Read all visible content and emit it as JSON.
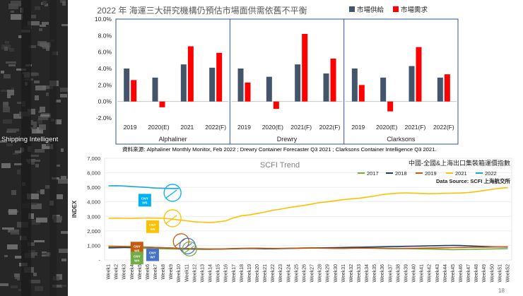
{
  "side_caption": "Shipping Intelligent",
  "source_note": "資料來源: Alphaliner Monthly Monitor, Feb 2022 ; Drewry Container Forecaster Q3 2021 ; Clarksons Container Intelligence Q3 2021.",
  "page_number": "18",
  "chart_data": [
    {
      "type": "bar",
      "title": "2022 年 海運三大研究機構仍預估市場面供需依舊不平衡",
      "legend": [
        "市場供給",
        "市場需求"
      ],
      "colors": {
        "supply": "#44546A",
        "demand": "#FF0000",
        "frame": "#2F5597"
      },
      "ylim": [
        -2.0,
        10.0
      ],
      "yticks": [
        "-2.0%",
        "0.0%",
        "2.0%",
        "4.0%",
        "6.0%",
        "8.0%",
        "10.0%"
      ],
      "ytick_values": [
        -2,
        0,
        2,
        4,
        6,
        8,
        10
      ],
      "panels": [
        {
          "name": "Alphaliner",
          "categories": [
            "2019",
            "2020(E)",
            "2021",
            "2022(F)"
          ],
          "supply": [
            4.0,
            2.9,
            4.5,
            4.1
          ],
          "demand": [
            2.6,
            -0.7,
            6.7,
            5.9
          ]
        },
        {
          "name": "Drewry",
          "categories": [
            "2019",
            "2020(E)",
            "2021(F)",
            "2022(F)"
          ],
          "supply": [
            4.0,
            3.0,
            4.5,
            3.4
          ],
          "demand": [
            2.3,
            -0.9,
            8.2,
            5.2
          ]
        },
        {
          "name": "Clarksons",
          "categories": [
            "2019",
            "2020(E)",
            "2021(F)",
            "2022(F)"
          ],
          "supply": [
            4.0,
            2.9,
            4.3,
            2.9
          ],
          "demand": [
            2.0,
            -1.2,
            6.6,
            3.3
          ]
        }
      ]
    },
    {
      "type": "line",
      "title": "SCFI Trend",
      "subtitle": "中國-全國&上海出口集裝箱運價指數",
      "source_label": "Data Source: SCFI 上海航交所",
      "ylabel": "INDEX",
      "ylim": [
        0,
        7000
      ],
      "yticks": [
        "-",
        "1,000",
        "2,000",
        "3,000",
        "4,000",
        "5,000",
        "6,000",
        "7,000"
      ],
      "ytick_values": [
        0,
        1000,
        2000,
        3000,
        4000,
        5000,
        6000,
        7000
      ],
      "categories": [
        "Week1",
        "Week2",
        "Week3",
        "Week4",
        "Week5",
        "Week6",
        "Week7",
        "Week8",
        "Week9",
        "Week10",
        "Week11",
        "Week12",
        "Week13",
        "Week14",
        "Week15",
        "Week16",
        "Week17",
        "Week18",
        "Week19",
        "Week20",
        "Week21",
        "Week22",
        "Week23",
        "Week24",
        "Week25",
        "Week26",
        "Week27",
        "Week28",
        "Week29",
        "Week30",
        "Week31",
        "Week32",
        "Week33",
        "Week34",
        "Week35",
        "Week36",
        "Week37",
        "Week38",
        "Week39",
        "Week40",
        "Week41",
        "Week42",
        "Week43",
        "Week44",
        "Week45",
        "Week46",
        "Week47",
        "Week48",
        "Week49",
        "Week50",
        "Week51",
        "Week52"
      ],
      "series": [
        {
          "name": "2017",
          "color": "#70AD47",
          "values": [
            880,
            860,
            850,
            830,
            800,
            790,
            780,
            770,
            760,
            750,
            740,
            740,
            730,
            730,
            760,
            770,
            790,
            800,
            810,
            800,
            790,
            780,
            790,
            800,
            810,
            830,
            840,
            830,
            820,
            810,
            820,
            830,
            840,
            850,
            830,
            810,
            800,
            790,
            780,
            770,
            760,
            750,
            740,
            720,
            710,
            720,
            730,
            740,
            750,
            760,
            770,
            780
          ]
        },
        {
          "name": "2018",
          "color": "#203864",
          "values": [
            830,
            840,
            860,
            880,
            890,
            880,
            860,
            840,
            820,
            800,
            780,
            770,
            760,
            750,
            750,
            760,
            770,
            780,
            790,
            780,
            770,
            770,
            780,
            790,
            800,
            810,
            820,
            830,
            840,
            850,
            860,
            870,
            880,
            890,
            900,
            910,
            920,
            930,
            940,
            950,
            960,
            970,
            980,
            990,
            1000,
            990,
            970,
            950,
            930,
            910,
            900,
            890
          ]
        },
        {
          "name": "2019",
          "color": "#C55A11",
          "values": [
            950,
            940,
            930,
            920,
            900,
            880,
            860,
            840,
            820,
            800,
            790,
            780,
            770,
            760,
            760,
            770,
            780,
            790,
            800,
            810,
            800,
            790,
            790,
            800,
            810,
            820,
            820,
            810,
            800,
            790,
            790,
            800,
            810,
            810,
            800,
            790,
            780,
            780,
            790,
            800,
            810,
            820,
            830,
            840,
            850,
            860,
            870,
            880,
            880,
            890,
            900,
            910
          ]
        },
        {
          "name": "2021",
          "color": "#FFC000",
          "values": [
            2870,
            2880,
            2870,
            2860,
            2880,
            2890,
            2880,
            2870,
            2820,
            2750,
            2700,
            2620,
            2600,
            2580,
            2620,
            2700,
            2900,
            3050,
            3100,
            3200,
            3300,
            3420,
            3500,
            3600,
            3680,
            3760,
            3850,
            3950,
            4000,
            4080,
            4150,
            4200,
            4250,
            4320,
            4400,
            4500,
            4560,
            4600,
            4620,
            4600,
            4580,
            4560,
            4570,
            4590,
            4600,
            4610,
            4640,
            4700,
            4780,
            4860,
            4930,
            4980
          ]
        },
        {
          "name": "2022",
          "color": "#1BA9D4",
          "values": [
            5100,
            5110,
            5090,
            5050,
            5020,
            4990,
            4950,
            4930,
            4920,
            4920,
            null,
            null,
            null,
            null,
            null,
            null,
            null,
            null,
            null,
            null,
            null,
            null,
            null,
            null,
            null,
            null,
            null,
            null,
            null,
            null,
            null,
            null,
            null,
            null,
            null,
            null,
            null,
            null,
            null,
            null,
            null,
            null,
            null,
            null,
            null,
            null,
            null,
            null,
            null,
            null,
            null,
            null
          ]
        }
      ],
      "annotations": [
        {
          "text": "CNY W5",
          "color": "#00B0F0",
          "week": 5,
          "value": 4550
        },
        {
          "text": "CNY W6",
          "color": "#FFC000",
          "week": 6,
          "value": 2730
        },
        {
          "text": "CNY W5",
          "color": "#C55A11",
          "week": 4,
          "value": 1250
        },
        {
          "text": "CNY W7",
          "color": "#4472C4",
          "week": 6,
          "value": 800
        },
        {
          "text": "CNY W4",
          "color": "#70AD47",
          "week": 4,
          "value": 570
        }
      ]
    }
  ]
}
